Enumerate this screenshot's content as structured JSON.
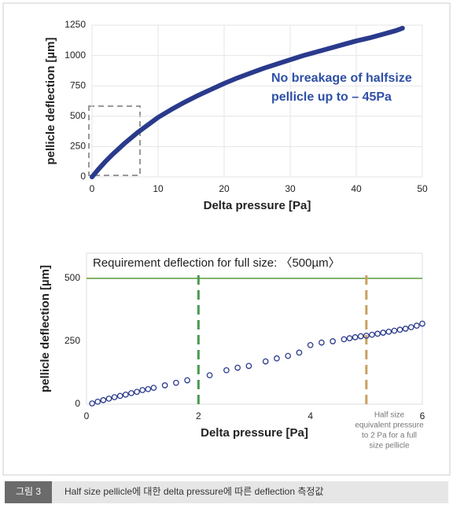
{
  "caption": {
    "label": "그림 3",
    "text": "Half size pellicle에 대한 delta pressure에 따른 deflection 측정값"
  },
  "chart_data": [
    {
      "type": "line",
      "xlabel": "Delta pressure [Pa]",
      "ylabel": "pellicle deflection [µm]",
      "annotations": [
        "No breakage of halfsize",
        "pellicle up to – 45Pa"
      ],
      "x": [
        0,
        1,
        2,
        3,
        4,
        5,
        6,
        7,
        8,
        10,
        12,
        14,
        16,
        18,
        20,
        22,
        24,
        26,
        28,
        30,
        32,
        34,
        36,
        38,
        40,
        42,
        44,
        46,
        47
      ],
      "series": [
        {
          "color": "#2a3a8c",
          "values": [
            0,
            65,
            125,
            180,
            230,
            280,
            325,
            370,
            410,
            490,
            555,
            615,
            670,
            720,
            770,
            815,
            855,
            895,
            930,
            965,
            1000,
            1030,
            1060,
            1090,
            1120,
            1145,
            1175,
            1205,
            1225
          ]
        }
      ],
      "xlim": [
        0,
        50
      ],
      "xticks": [
        0,
        10,
        20,
        30,
        40,
        50
      ],
      "ylim": [
        0,
        1250
      ],
      "yticks": [
        0,
        250,
        500,
        750,
        1000,
        1250
      ],
      "grid": true
    },
    {
      "type": "scatter",
      "xlabel": "Delta pressure [Pa]",
      "ylabel": "pellicle deflection [µm]",
      "annotations": [
        "Requirement deflection for full size: 〈500µm〉",
        "Half size",
        "equivalent pressure",
        "to 2 Pa for a full",
        "size pellicle"
      ],
      "x": [
        0.1,
        0.2,
        0.3,
        0.4,
        0.5,
        0.6,
        0.7,
        0.8,
        0.9,
        1.0,
        1.1,
        1.2,
        1.4,
        1.6,
        1.8,
        2.2,
        2.5,
        2.7,
        2.9,
        3.2,
        3.4,
        3.6,
        3.8,
        4.0,
        4.2,
        4.4,
        4.6,
        4.7,
        4.8,
        4.9,
        5.0,
        5.1,
        5.2,
        5.3,
        5.4,
        5.5,
        5.6,
        5.7,
        5.8,
        5.9,
        6.0
      ],
      "series": [
        {
          "color": "#2a3a8c",
          "values": [
            3,
            10,
            16,
            22,
            28,
            33,
            38,
            44,
            49,
            56,
            60,
            65,
            75,
            85,
            95,
            115,
            135,
            145,
            152,
            170,
            182,
            192,
            205,
            235,
            245,
            250,
            258,
            262,
            266,
            270,
            272,
            276,
            280,
            284,
            288,
            292,
            296,
            300,
            306,
            312,
            320
          ]
        }
      ],
      "reference_lines": [
        {
          "axis": "y",
          "value": 500,
          "color": "#5a9a3a"
        },
        {
          "axis": "x",
          "value": 2,
          "color": "#4a9a50"
        },
        {
          "axis": "x",
          "value": 5,
          "color": "#c8a060"
        }
      ],
      "xlim": [
        0,
        6
      ],
      "xticks": [
        0,
        2,
        4,
        6
      ],
      "ylim": [
        0,
        600
      ],
      "yticks": [
        0,
        250,
        500
      ],
      "grid": false
    }
  ]
}
